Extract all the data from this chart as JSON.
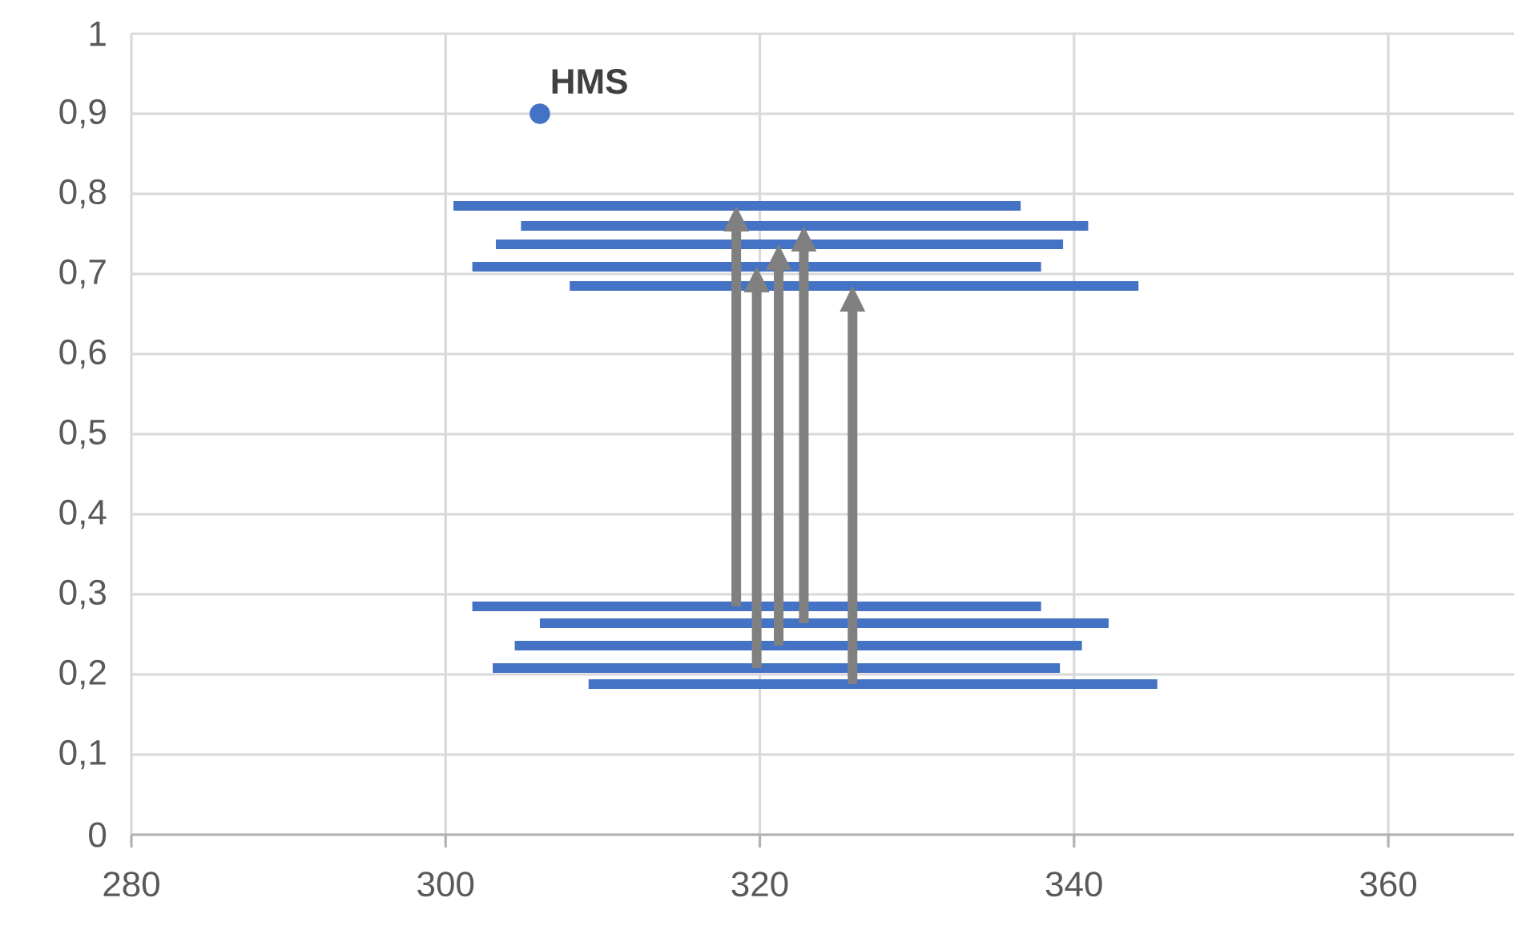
{
  "chart_data": {
    "type": "line",
    "xlim": [
      280,
      368
    ],
    "xticks": [
      280,
      300,
      320,
      340,
      360
    ],
    "ylim": [
      0,
      1
    ],
    "yticks": [
      0,
      {
        "value": 0.1,
        "label": "0,1"
      },
      {
        "value": 0.2,
        "label": "0,2"
      },
      {
        "value": 0.3,
        "label": "0,3"
      },
      {
        "value": 0.4,
        "label": "0,4"
      },
      {
        "value": 0.5,
        "label": "0,5"
      },
      {
        "value": 0.6,
        "label": "0,6"
      },
      {
        "value": 0.7,
        "label": "0,7"
      },
      {
        "value": 0.8,
        "label": "0,8"
      },
      {
        "value": 0.9,
        "label": "0,9"
      },
      1
    ],
    "grid": true,
    "series": [
      {
        "color": "#4472c4",
        "x": [
          300.5,
          336.6
        ],
        "values": [
          0.785,
          0.785
        ]
      },
      {
        "color": "#4472c4",
        "x": [
          304.8,
          340.9
        ],
        "values": [
          0.76,
          0.76
        ]
      },
      {
        "color": "#4472c4",
        "x": [
          303.2,
          339.3
        ],
        "values": [
          0.737,
          0.737
        ]
      },
      {
        "color": "#4472c4",
        "x": [
          301.7,
          337.9
        ],
        "values": [
          0.709,
          0.709
        ]
      },
      {
        "color": "#4472c4",
        "x": [
          307.9,
          344.1
        ],
        "values": [
          0.685,
          0.685
        ]
      },
      {
        "color": "#4472c4",
        "x": [
          301.7,
          337.9
        ],
        "values": [
          0.285,
          0.285
        ]
      },
      {
        "color": "#4472c4",
        "x": [
          306.0,
          342.2
        ],
        "values": [
          0.264,
          0.264
        ]
      },
      {
        "color": "#4472c4",
        "x": [
          304.4,
          340.5
        ],
        "values": [
          0.236,
          0.236
        ]
      },
      {
        "color": "#4472c4",
        "x": [
          303.0,
          339.1
        ],
        "values": [
          0.208,
          0.208
        ]
      },
      {
        "color": "#4472c4",
        "x": [
          309.1,
          345.3
        ],
        "values": [
          0.188,
          0.188
        ]
      },
      {
        "type": "scatter",
        "marker": "circle",
        "color": "#4472c4",
        "x": [
          306.0
        ],
        "values": [
          0.9
        ]
      }
    ],
    "annotations": [
      {
        "text": "HMS",
        "x": 306.0,
        "y": 0.9
      }
    ]
  }
}
